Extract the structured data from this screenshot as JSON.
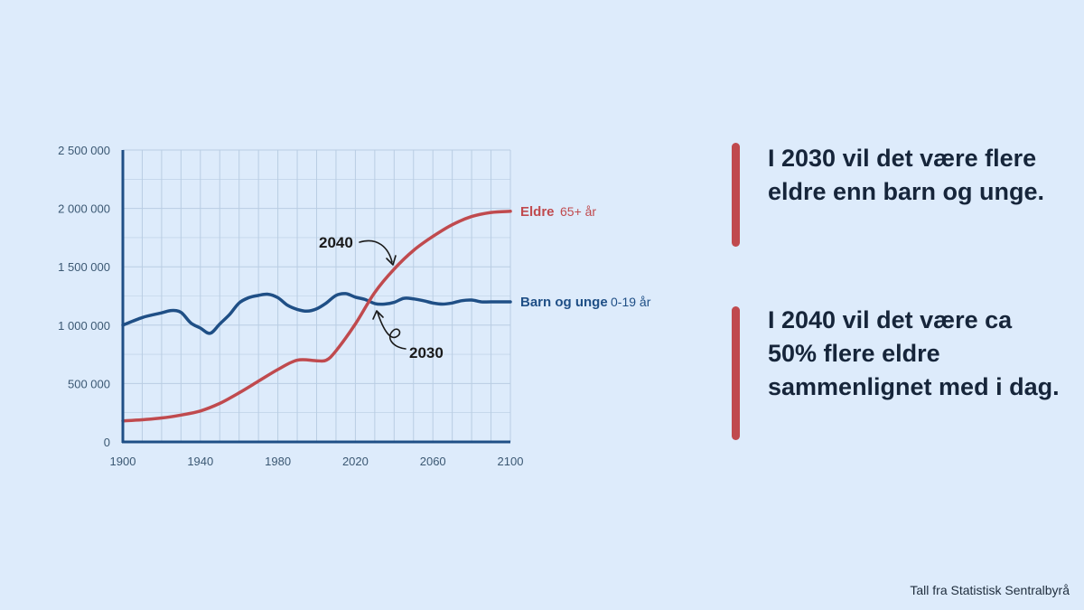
{
  "colors": {
    "background": "#ddebfb",
    "eldre": "#c04a4e",
    "barn": "#1f4f86",
    "axis": "#1f4f86",
    "grid": "#b9cde3",
    "text_dark": "#16253a",
    "accent_bar": "#c04a4e"
  },
  "chart_data": {
    "type": "line",
    "title": "",
    "xlabel": "",
    "ylabel": "",
    "xlim": [
      1900,
      2100
    ],
    "ylim": [
      0,
      2500000
    ],
    "x_ticks": [
      "1900",
      "1940",
      "1980",
      "2020",
      "2060",
      "2100"
    ],
    "x_tick_values": [
      1900,
      1940,
      1980,
      2020,
      2060,
      2100
    ],
    "y_ticks": [
      "0",
      "500 000",
      "1 000 000",
      "1 500 000",
      "2 000 000",
      "2 500 000"
    ],
    "y_tick_values": [
      0,
      500000,
      1000000,
      1500000,
      2000000,
      2500000
    ],
    "grid": true,
    "series": [
      {
        "name": "Eldre",
        "sublabel": "65+ år",
        "color": "#c04a4e",
        "points": [
          [
            1900,
            180000
          ],
          [
            1910,
            190000
          ],
          [
            1920,
            205000
          ],
          [
            1930,
            230000
          ],
          [
            1940,
            265000
          ],
          [
            1950,
            330000
          ],
          [
            1960,
            420000
          ],
          [
            1970,
            520000
          ],
          [
            1980,
            620000
          ],
          [
            1990,
            700000
          ],
          [
            2000,
            695000
          ],
          [
            2005,
            700000
          ],
          [
            2010,
            780000
          ],
          [
            2020,
            1010000
          ],
          [
            2030,
            1280000
          ],
          [
            2040,
            1480000
          ],
          [
            2050,
            1640000
          ],
          [
            2060,
            1760000
          ],
          [
            2070,
            1860000
          ],
          [
            2080,
            1930000
          ],
          [
            2090,
            1965000
          ],
          [
            2100,
            1975000
          ]
        ]
      },
      {
        "name": "Barn og unge",
        "sublabel": "0-19 år",
        "color": "#1f4f86",
        "points": [
          [
            1900,
            1000000
          ],
          [
            1910,
            1065000
          ],
          [
            1920,
            1105000
          ],
          [
            1925,
            1125000
          ],
          [
            1930,
            1110000
          ],
          [
            1935,
            1020000
          ],
          [
            1940,
            975000
          ],
          [
            1945,
            930000
          ],
          [
            1950,
            1010000
          ],
          [
            1955,
            1090000
          ],
          [
            1960,
            1190000
          ],
          [
            1965,
            1235000
          ],
          [
            1970,
            1255000
          ],
          [
            1975,
            1265000
          ],
          [
            1980,
            1235000
          ],
          [
            1985,
            1170000
          ],
          [
            1990,
            1135000
          ],
          [
            1995,
            1120000
          ],
          [
            2000,
            1140000
          ],
          [
            2005,
            1190000
          ],
          [
            2010,
            1255000
          ],
          [
            2015,
            1270000
          ],
          [
            2020,
            1240000
          ],
          [
            2025,
            1220000
          ],
          [
            2030,
            1185000
          ],
          [
            2035,
            1180000
          ],
          [
            2040,
            1195000
          ],
          [
            2045,
            1230000
          ],
          [
            2050,
            1225000
          ],
          [
            2055,
            1210000
          ],
          [
            2060,
            1190000
          ],
          [
            2065,
            1180000
          ],
          [
            2070,
            1190000
          ],
          [
            2075,
            1210000
          ],
          [
            2080,
            1215000
          ],
          [
            2085,
            1200000
          ],
          [
            2090,
            1200000
          ],
          [
            2100,
            1200000
          ]
        ]
      }
    ],
    "annotations": [
      {
        "text": "2040",
        "year": 2040
      },
      {
        "text": "2030",
        "year": 2030
      }
    ]
  },
  "callouts": [
    {
      "text": "I 2030 vil det være flere eldre enn barn og unge."
    },
    {
      "text": "I 2040 vil det være ca 50% flere eldre sammenlignet med i dag."
    }
  ],
  "source": "Tall fra Statistisk Sentralbyrå"
}
